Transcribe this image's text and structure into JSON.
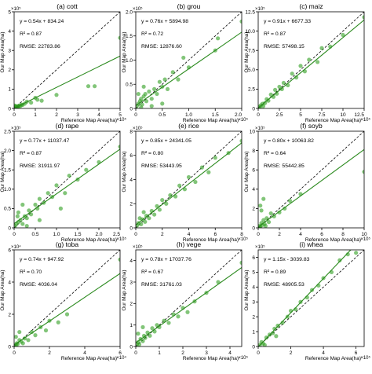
{
  "colors": {
    "point": "#2e9e1f",
    "fit_line": "#2b8a1e",
    "identity_line": "#000000",
    "axes": "#000000"
  },
  "axis_labels": {
    "x": "Reference Map Area(ha)",
    "y": "Our Map Area(ha)"
  },
  "chart_data": [
    {
      "type": "scatter",
      "title": "(a) cott",
      "xlim": [
        0,
        5
      ],
      "ylim": [
        0,
        5
      ],
      "x_exp": "×10⁵",
      "y_exp": "×10⁵",
      "xticks": [
        0,
        1,
        2,
        3,
        4,
        5
      ],
      "yticks": [
        0,
        1,
        2,
        3,
        4,
        5
      ],
      "xtick_labels": [
        "0",
        "1",
        "2",
        "3",
        "4",
        "5"
      ],
      "ytick_labels": [
        "0",
        "1",
        "2",
        "3",
        "4",
        "5"
      ],
      "xlabel": "",
      "ylabel": "",
      "fit": {
        "slope": 0.54,
        "intercept": 0.0083
      },
      "annotations": [
        "y = 0.54x + 834.24",
        "R² = 0.87",
        "RMSE: 22783.86"
      ],
      "points": [
        [
          0.02,
          0.03
        ],
        [
          0.05,
          0.04
        ],
        [
          0.08,
          0.06
        ],
        [
          0.1,
          0.08
        ],
        [
          0.12,
          0.05
        ],
        [
          0.15,
          0.1
        ],
        [
          0.18,
          0.12
        ],
        [
          0.2,
          0.07
        ],
        [
          0.25,
          0.15
        ],
        [
          0.3,
          0.13
        ],
        [
          0.35,
          0.2
        ],
        [
          0.4,
          0.18
        ],
        [
          0.5,
          0.25
        ],
        [
          0.6,
          0.35
        ],
        [
          0.8,
          0.3
        ],
        [
          1.0,
          0.55
        ],
        [
          1.1,
          0.45
        ],
        [
          1.3,
          0.4
        ],
        [
          2.0,
          0.7
        ],
        [
          3.5,
          1.15
        ],
        [
          3.8,
          1.15
        ],
        [
          5.0,
          3.65
        ],
        [
          0.03,
          0.15
        ],
        [
          0.07,
          0.12
        ]
      ]
    },
    {
      "type": "scatter",
      "title": "(b) grou",
      "xlim": [
        0,
        2.0
      ],
      "ylim": [
        0,
        2.0
      ],
      "x_exp": "×10⁵",
      "y_exp": "×10⁵",
      "xticks": [
        0,
        0.5,
        1.0,
        1.5,
        2.0
      ],
      "yticks": [
        0,
        0.5,
        1.0,
        1.5,
        2.0
      ],
      "xtick_labels": [
        "0",
        "0.5",
        "1.0",
        "1.5",
        "2.0"
      ],
      "ytick_labels": [
        "0",
        "0.5",
        "1.0",
        "1.5",
        "2.0"
      ],
      "xlabel": "",
      "ylabel": "",
      "fit": {
        "slope": 0.76,
        "intercept": 0.059
      },
      "annotations": [
        "y = 0.76x + 5894.98",
        "R² = 0.72",
        "RMSE: 12876.60"
      ],
      "points": [
        [
          0.02,
          0.05
        ],
        [
          0.05,
          0.1
        ],
        [
          0.08,
          0.15
        ],
        [
          0.1,
          0.2
        ],
        [
          0.12,
          0.08
        ],
        [
          0.15,
          0.25
        ],
        [
          0.18,
          0.3
        ],
        [
          0.2,
          0.15
        ],
        [
          0.25,
          0.35
        ],
        [
          0.3,
          0.2
        ],
        [
          0.35,
          0.4
        ],
        [
          0.4,
          0.3
        ],
        [
          0.45,
          0.55
        ],
        [
          0.5,
          0.45
        ],
        [
          0.55,
          0.6
        ],
        [
          0.6,
          0.4
        ],
        [
          0.7,
          0.75
        ],
        [
          0.8,
          0.6
        ],
        [
          0.9,
          1.05
        ],
        [
          1.0,
          0.85
        ],
        [
          1.5,
          1.2
        ],
        [
          1.55,
          1.45
        ],
        [
          2.0,
          1.8
        ],
        [
          0.05,
          0.3
        ],
        [
          0.15,
          0.45
        ],
        [
          0.1,
          0.02
        ],
        [
          0.3,
          0.05
        ],
        [
          0.5,
          0.1
        ]
      ]
    },
    {
      "type": "scatter",
      "title": "(c) maiz",
      "xlim": [
        0,
        12.5
      ],
      "ylim": [
        0,
        12.5
      ],
      "x_exp": "×10⁵",
      "y_exp": "×10⁵",
      "xticks": [
        0,
        2.5,
        5,
        7.5,
        10,
        12.5
      ],
      "yticks": [
        0,
        2.5,
        5.0,
        7.5,
        10.0,
        12.5
      ],
      "xtick_labels": [
        "0",
        "2.5",
        "5",
        "7.5",
        "10",
        "12.5"
      ],
      "ytick_labels": [
        "0",
        "2.5",
        "5.0",
        "7.5",
        "10.0",
        "12.5"
      ],
      "xlabel": "",
      "ylabel": "",
      "fit": {
        "slope": 0.91,
        "intercept": 0.067
      },
      "annotations": [
        "y = 0.91x + 6677.33",
        "R² = 0.87",
        "RMSE: 57498.15"
      ],
      "points": [
        [
          0.1,
          0.2
        ],
        [
          0.3,
          0.4
        ],
        [
          0.5,
          0.6
        ],
        [
          0.8,
          0.7
        ],
        [
          1.0,
          1.2
        ],
        [
          1.2,
          1.0
        ],
        [
          1.5,
          1.8
        ],
        [
          1.8,
          1.5
        ],
        [
          2.0,
          2.4
        ],
        [
          2.2,
          1.9
        ],
        [
          2.5,
          2.8
        ],
        [
          2.8,
          2.5
        ],
        [
          3.0,
          3.3
        ],
        [
          3.5,
          3.0
        ],
        [
          4.0,
          4.5
        ],
        [
          4.5,
          4.0
        ],
        [
          5.0,
          5.5
        ],
        [
          5.5,
          4.8
        ],
        [
          6.0,
          6.3
        ],
        [
          7.0,
          6.0
        ],
        [
          7.5,
          7.8
        ],
        [
          8.5,
          8.0
        ],
        [
          10.0,
          9.5
        ],
        [
          12.5,
          11.8
        ],
        [
          0.2,
          0.05
        ],
        [
          0.6,
          0.3
        ]
      ]
    },
    {
      "type": "scatter",
      "title": "(d) rape",
      "xlim": [
        0,
        2.5
      ],
      "ylim": [
        0,
        2.5
      ],
      "x_exp": "×10⁵",
      "y_exp": "×10⁵",
      "xticks": [
        0,
        0.5,
        1.0,
        1.5,
        2.0,
        2.5
      ],
      "yticks": [
        0,
        0.5,
        1.0,
        1.5,
        2.0,
        2.5
      ],
      "xtick_labels": [
        "0",
        "0.5",
        "1.0",
        "1.5",
        "2.0",
        "2.5"
      ],
      "ytick_labels": [
        "0",
        "0.5",
        "1.0",
        "1.5",
        "2.0",
        "2.5"
      ],
      "xlabel": "",
      "ylabel": "",
      "fit": {
        "slope": 0.77,
        "intercept": 0.11
      },
      "annotations": [
        "y = 0.77x + 11037.47",
        "R² = 0.87",
        "RMSE: 31911.97"
      ],
      "points": [
        [
          0.02,
          0.05
        ],
        [
          0.05,
          0.1
        ],
        [
          0.1,
          0.15
        ],
        [
          0.15,
          0.2
        ],
        [
          0.2,
          0.1
        ],
        [
          0.25,
          0.3
        ],
        [
          0.3,
          0.25
        ],
        [
          0.35,
          0.45
        ],
        [
          0.4,
          0.35
        ],
        [
          0.5,
          0.6
        ],
        [
          0.55,
          0.5
        ],
        [
          0.6,
          0.75
        ],
        [
          0.7,
          0.65
        ],
        [
          0.8,
          0.9
        ],
        [
          0.9,
          0.8
        ],
        [
          1.0,
          1.1
        ],
        [
          1.2,
          0.9
        ],
        [
          1.3,
          1.35
        ],
        [
          1.5,
          1.25
        ],
        [
          1.7,
          1.5
        ],
        [
          2.0,
          1.7
        ],
        [
          2.5,
          2.1
        ],
        [
          0.1,
          0.4
        ],
        [
          0.2,
          0.6
        ],
        [
          0.3,
          0.05
        ],
        [
          0.6,
          0.2
        ],
        [
          0.08,
          0.3
        ],
        [
          1.1,
          0.5
        ]
      ]
    },
    {
      "type": "scatter",
      "title": "(e) rice",
      "xlim": [
        0,
        8
      ],
      "ylim": [
        0,
        8
      ],
      "x_exp": "×10⁵",
      "y_exp": "×10⁵",
      "xticks": [
        0,
        2,
        4,
        6,
        8
      ],
      "yticks": [
        0,
        2,
        4,
        6,
        8
      ],
      "xtick_labels": [
        "0",
        "2",
        "4",
        "6",
        "8"
      ],
      "ytick_labels": [
        "0",
        "2",
        "4",
        "6",
        "8"
      ],
      "xlabel": "",
      "ylabel": "",
      "fit": {
        "slope": 0.85,
        "intercept": 0.24
      },
      "annotations": [
        "y = 0.85x + 24341.05",
        "R² = 0.80",
        "RMSE: 53443.95"
      ],
      "points": [
        [
          0.1,
          0.2
        ],
        [
          0.2,
          0.4
        ],
        [
          0.4,
          0.3
        ],
        [
          0.5,
          0.7
        ],
        [
          0.7,
          0.5
        ],
        [
          0.8,
          1.0
        ],
        [
          1.0,
          0.8
        ],
        [
          1.2,
          1.4
        ],
        [
          1.4,
          1.1
        ],
        [
          1.6,
          1.8
        ],
        [
          1.8,
          1.5
        ],
        [
          2.0,
          2.3
        ],
        [
          2.3,
          2.0
        ],
        [
          2.6,
          2.7
        ],
        [
          3.0,
          2.6
        ],
        [
          3.3,
          3.5
        ],
        [
          3.7,
          3.2
        ],
        [
          4.0,
          4.2
        ],
        [
          4.5,
          3.8
        ],
        [
          5.0,
          5.0
        ],
        [
          5.5,
          4.6
        ],
        [
          6.0,
          5.8
        ],
        [
          7.0,
          6.2
        ],
        [
          8.0,
          7.2
        ],
        [
          0.3,
          0.8
        ],
        [
          0.6,
          1.3
        ]
      ]
    },
    {
      "type": "scatter",
      "title": "(f) soyb",
      "xlim": [
        0,
        10
      ],
      "ylim": [
        0,
        10
      ],
      "x_exp": "×10⁵",
      "y_exp": "×10⁵",
      "xticks": [
        0,
        2,
        4,
        6,
        8,
        10
      ],
      "yticks": [
        0,
        2,
        4,
        6,
        8,
        10
      ],
      "xtick_labels": [
        "0",
        "2",
        "4",
        "6",
        "8",
        "10"
      ],
      "ytick_labels": [
        "0",
        "2",
        "4",
        "6",
        "8",
        "10"
      ],
      "xlabel": "",
      "ylabel": "",
      "fit": {
        "slope": 0.8,
        "intercept": 0.1
      },
      "annotations": [
        "y = 0.80x + 10063.82",
        "R² = 0.64",
        "RMSE: 55442.85"
      ],
      "points": [
        [
          0.1,
          0.2
        ],
        [
          0.2,
          0.1
        ],
        [
          0.3,
          0.5
        ],
        [
          0.4,
          0.3
        ],
        [
          0.5,
          0.8
        ],
        [
          0.6,
          0.4
        ],
        [
          0.8,
          1.0
        ],
        [
          1.0,
          0.6
        ],
        [
          1.2,
          1.5
        ],
        [
          1.5,
          1.2
        ],
        [
          0.2,
          2.3
        ],
        [
          0.5,
          3.0
        ],
        [
          0.3,
          1.8
        ],
        [
          2.0,
          1.6
        ],
        [
          2.5,
          2.0
        ],
        [
          3.0,
          2.8
        ],
        [
          4.0,
          3.5
        ],
        [
          10.0,
          5.8
        ],
        [
          0.15,
          0.05
        ],
        [
          0.7,
          0.2
        ]
      ]
    },
    {
      "type": "scatter",
      "title": "(g) toba",
      "xlim": [
        0,
        6
      ],
      "ylim": [
        0,
        6
      ],
      "x_exp": "×10⁴",
      "y_exp": "×10⁴",
      "xticks": [
        0,
        2,
        4,
        6
      ],
      "yticks": [
        0,
        2,
        4,
        6
      ],
      "xtick_labels": [
        "0",
        "2",
        "4",
        "6"
      ],
      "ytick_labels": [
        "0",
        "2",
        "4",
        "6"
      ],
      "xlabel": "",
      "ylabel": "",
      "fit": {
        "slope": 0.74,
        "intercept": 0.095
      },
      "annotations": [
        "y = 0.74x + 947.92",
        "R² = 0.70",
        "RMSE: 4036.04"
      ],
      "points": [
        [
          0.05,
          0.1
        ],
        [
          0.1,
          0.05
        ],
        [
          0.15,
          0.2
        ],
        [
          0.2,
          0.15
        ],
        [
          0.3,
          0.4
        ],
        [
          0.4,
          0.3
        ],
        [
          0.5,
          0.2
        ],
        [
          0.6,
          0.5
        ],
        [
          0.8,
          0.4
        ],
        [
          1.0,
          0.9
        ],
        [
          1.2,
          0.7
        ],
        [
          1.5,
          1.2
        ],
        [
          1.8,
          1.0
        ],
        [
          2.0,
          1.6
        ],
        [
          2.5,
          1.5
        ],
        [
          3.0,
          2.0
        ],
        [
          6.0,
          5.4
        ],
        [
          0.1,
          0.6
        ],
        [
          0.3,
          0.9
        ]
      ]
    },
    {
      "type": "scatter",
      "title": "(h) vege",
      "xlim": [
        0,
        4.5
      ],
      "ylim": [
        0,
        4.5
      ],
      "x_exp": "×10⁵",
      "y_exp": "×10⁵",
      "xticks": [
        0,
        1,
        2,
        3,
        4
      ],
      "yticks": [
        0,
        1,
        2,
        3,
        4
      ],
      "xtick_labels": [
        "0",
        "1",
        "2",
        "3",
        "4"
      ],
      "ytick_labels": [
        "0",
        "1",
        "2",
        "3",
        "4"
      ],
      "xlabel": "",
      "ylabel": "",
      "fit": {
        "slope": 0.78,
        "intercept": 0.17
      },
      "annotations": [
        "y = 0.78x + 17037.76",
        "R² = 0.67",
        "RMSE: 31761.03"
      ],
      "points": [
        [
          0.05,
          0.1
        ],
        [
          0.1,
          0.2
        ],
        [
          0.15,
          0.1
        ],
        [
          0.2,
          0.35
        ],
        [
          0.3,
          0.25
        ],
        [
          0.35,
          0.5
        ],
        [
          0.4,
          0.4
        ],
        [
          0.5,
          0.65
        ],
        [
          0.6,
          0.5
        ],
        [
          0.7,
          0.85
        ],
        [
          0.8,
          0.7
        ],
        [
          0.9,
          1.0
        ],
        [
          1.0,
          0.9
        ],
        [
          1.2,
          1.2
        ],
        [
          1.4,
          1.1
        ],
        [
          1.6,
          1.5
        ],
        [
          1.8,
          1.4
        ],
        [
          2.0,
          1.8
        ],
        [
          2.2,
          1.6
        ],
        [
          2.5,
          2.1
        ],
        [
          3.0,
          2.5
        ],
        [
          3.5,
          3.0
        ],
        [
          4.5,
          3.9
        ],
        [
          0.1,
          0.6
        ],
        [
          0.3,
          0.9
        ]
      ]
    },
    {
      "type": "scatter",
      "title": "(i) whea",
      "xlim": [
        0,
        6.5
      ],
      "ylim": [
        0,
        6.5
      ],
      "x_exp": "×10⁵",
      "y_exp": "×10⁵",
      "xticks": [
        0,
        2,
        4,
        6
      ],
      "yticks": [
        0,
        1,
        2,
        3,
        4,
        5,
        6
      ],
      "xtick_labels": [
        "0",
        "2",
        "4",
        "6"
      ],
      "ytick_labels": [
        "0",
        "1",
        "2",
        "3",
        "4",
        "5",
        "6"
      ],
      "xlabel": "",
      "ylabel": "",
      "fit": {
        "slope": 1.15,
        "intercept": -0.03
      },
      "annotations": [
        "y = 1.15x - 3039.83",
        "R² = 0.89",
        "RMSE: 48905.53"
      ],
      "points": [
        [
          0.1,
          0.1
        ],
        [
          0.2,
          0.3
        ],
        [
          0.3,
          0.2
        ],
        [
          0.5,
          0.6
        ],
        [
          0.7,
          0.8
        ],
        [
          0.9,
          0.9
        ],
        [
          1.0,
          1.2
        ],
        [
          1.2,
          1.4
        ],
        [
          1.5,
          1.6
        ],
        [
          1.8,
          2.0
        ],
        [
          2.0,
          2.4
        ],
        [
          2.3,
          2.5
        ],
        [
          2.6,
          3.0
        ],
        [
          3.0,
          3.3
        ],
        [
          3.3,
          3.8
        ],
        [
          3.7,
          4.1
        ],
        [
          4.0,
          4.6
        ],
        [
          4.5,
          5.0
        ],
        [
          5.0,
          5.8
        ],
        [
          5.5,
          6.2
        ],
        [
          6.0,
          6.3
        ],
        [
          0.4,
          0.1
        ],
        [
          1.1,
          0.7
        ]
      ]
    }
  ]
}
